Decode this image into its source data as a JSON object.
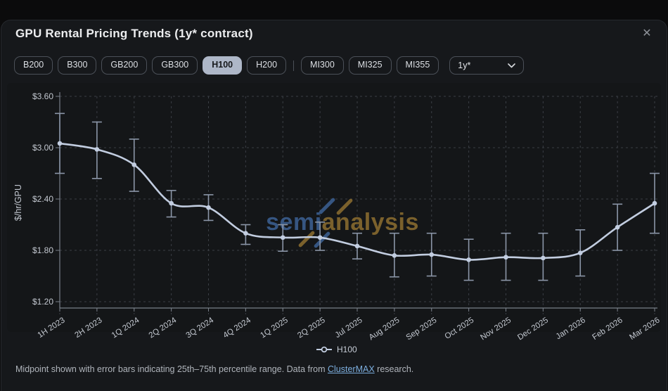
{
  "window": {
    "close_icon": "✕"
  },
  "header": {
    "title": "GPU Rental Pricing Trends (1y* contract)"
  },
  "toolbar": {
    "nvidia_buttons": [
      "B200",
      "B300",
      "GB200",
      "GB300",
      "H100",
      "H200"
    ],
    "amd_buttons": [
      "MI300",
      "MI325",
      "MI355"
    ],
    "selected_button": "H100",
    "contract_select": {
      "value": "1y*"
    }
  },
  "chart_data": {
    "type": "line",
    "title": "GPU Rental Pricing Trends (1y* contract)",
    "ylabel": "$/hr/GPU",
    "ylim": [
      1.05,
      3.7
    ],
    "yticks": [
      1.2,
      1.8,
      2.4,
      3.0,
      3.6
    ],
    "ytick_labels": [
      "$1.20",
      "$1.80",
      "$2.40",
      "$3.00",
      "$3.60"
    ],
    "grid": true,
    "legend": {
      "position": "bottom-center",
      "entries": [
        "H100"
      ]
    },
    "categories": [
      "1H 2023",
      "2H 2023",
      "1Q 2024",
      "2Q 2024",
      "3Q 2024",
      "4Q 2024",
      "1Q 2025",
      "2Q 2025",
      "Jul 2025",
      "Aug 2025",
      "Sep 2025",
      "Oct 2025",
      "Nov 2025",
      "Dec 2025",
      "Jan 2026",
      "Feb 2026",
      "Mar 2026"
    ],
    "series": [
      {
        "name": "H100",
        "color": "#c2cde0",
        "midpoint": [
          3.05,
          2.98,
          2.8,
          2.35,
          2.3,
          2.0,
          1.95,
          1.95,
          1.85,
          1.74,
          1.75,
          1.69,
          1.72,
          1.71,
          1.77,
          2.07,
          2.35
        ],
        "p25": [
          2.7,
          2.64,
          2.49,
          2.19,
          2.15,
          1.87,
          1.79,
          1.8,
          1.7,
          1.49,
          1.5,
          1.45,
          1.45,
          1.45,
          1.5,
          1.8,
          2.0
        ],
        "p75": [
          3.4,
          3.3,
          3.1,
          2.5,
          2.45,
          2.1,
          2.1,
          2.13,
          2.0,
          2.0,
          2.0,
          1.93,
          2.0,
          2.0,
          2.04,
          2.34,
          2.7
        ]
      }
    ],
    "error_bar_note": "25th–75th percentile range"
  },
  "watermark": {
    "part1": "semi",
    "part2": "analysis",
    "color1": "#3b5f91",
    "color2": "#8a6c2f"
  },
  "footer": {
    "prefix": "Midpoint shown with error bars indicating 25th–75th percentile range. Data from ",
    "link": "ClusterMAX",
    "suffix": " research."
  },
  "colors": {
    "line": "#c2cde0",
    "error_bar": "#8b96a8",
    "grid": "#3a3e44",
    "axis": "#787f89",
    "tick_text": "#c3c8d0",
    "selected_chip_bg": "#aeb7c8",
    "link": "#7caede"
  }
}
